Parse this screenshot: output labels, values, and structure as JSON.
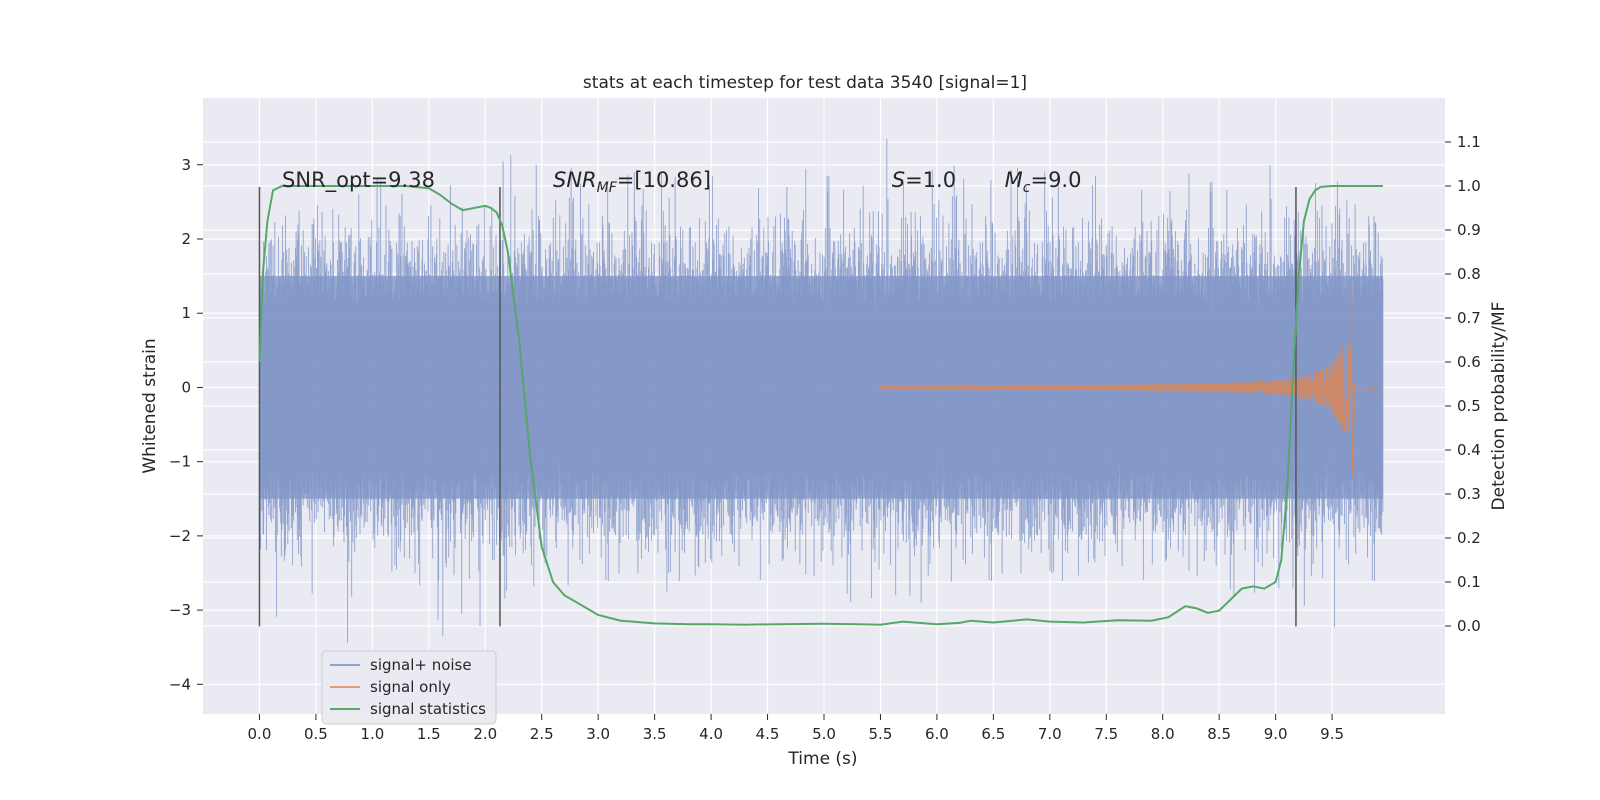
{
  "chart_data": {
    "type": "line",
    "title": "stats at each timestep for test data 3540 [signal=1]",
    "xlabel": "Time (s)",
    "ylabel": "Whitened strain",
    "ylabel_right": "Detection probability/MF",
    "xlim": [
      -0.5,
      10.5
    ],
    "ylim": [
      -4.4,
      3.9
    ],
    "ylim_right": [
      -0.2,
      1.2
    ],
    "x_ticks": [
      "0.0",
      "0.5",
      "1.0",
      "1.5",
      "2.0",
      "2.5",
      "3.0",
      "3.5",
      "4.0",
      "4.5",
      "5.0",
      "5.5",
      "6.0",
      "6.5",
      "7.0",
      "7.5",
      "8.0",
      "8.5",
      "9.0",
      "9.5"
    ],
    "y_ticks": [
      "3",
      "2",
      "1",
      "0",
      "−1",
      "−2",
      "−3",
      "−4"
    ],
    "y_right_ticks": [
      "1.1",
      "1.0",
      "0.9",
      "0.8",
      "0.7",
      "0.6",
      "0.5",
      "0.4",
      "0.3",
      "0.2",
      "0.1",
      "0.0"
    ],
    "grid": true,
    "legend_position": "lower-left",
    "colors": {
      "plot_bg": "#eaeaf2",
      "grid": "#ffffff",
      "noise": "#8197c8",
      "signal": "#dd8452",
      "stats": "#55a868",
      "vlines": "#555555"
    },
    "series": [
      {
        "name": "signal+ noise",
        "envelope": {
          "x": [
            0.0,
            1.0,
            2.0,
            2.2,
            3.0,
            4.0,
            5.0,
            5.5,
            6.0,
            7.0,
            8.0,
            9.0,
            9.2,
            9.5,
            9.95
          ],
          "upper": [
            2.5,
            2.8,
            2.9,
            3.35,
            2.9,
            2.9,
            3.0,
            3.5,
            3.1,
            2.9,
            2.9,
            3.0,
            3.0,
            2.9,
            2.4
          ],
          "lower": [
            -3.1,
            -3.6,
            -3.2,
            -2.8,
            -3.0,
            -3.3,
            -2.9,
            -2.9,
            -2.9,
            -2.8,
            -2.9,
            -2.8,
            -2.8,
            -3.6,
            -2.6
          ]
        }
      },
      {
        "name": "signal only",
        "chirp": {
          "t_start": 5.5,
          "t_merge": 9.67,
          "amp_start": 0.02,
          "amp_peak": 1.4,
          "amp_peak_neg": -1.2
        }
      },
      {
        "name": "signal statistics",
        "x": [
          0.0,
          0.03,
          0.07,
          0.12,
          0.2,
          0.3,
          0.5,
          0.8,
          1.0,
          1.3,
          1.5,
          1.6,
          1.7,
          1.8,
          1.9,
          2.0,
          2.05,
          2.1,
          2.15,
          2.2,
          2.3,
          2.4,
          2.5,
          2.6,
          2.7,
          2.8,
          3.0,
          3.2,
          3.5,
          3.8,
          4.0,
          4.3,
          4.6,
          5.0,
          5.3,
          5.5,
          5.7,
          6.0,
          6.2,
          6.3,
          6.5,
          6.8,
          7.0,
          7.3,
          7.6,
          7.9,
          8.05,
          8.2,
          8.3,
          8.4,
          8.5,
          8.6,
          8.7,
          8.8,
          8.9,
          9.0,
          9.05,
          9.1,
          9.15,
          9.2,
          9.25,
          9.3,
          9.35,
          9.4,
          9.5,
          9.6,
          9.8,
          9.95
        ],
        "values": [
          0.6,
          0.8,
          0.92,
          0.99,
          1.0,
          1.0,
          1.0,
          1.0,
          1.0,
          1.0,
          0.995,
          0.98,
          0.96,
          0.945,
          0.95,
          0.955,
          0.95,
          0.94,
          0.91,
          0.85,
          0.65,
          0.38,
          0.18,
          0.1,
          0.07,
          0.055,
          0.025,
          0.012,
          0.006,
          0.004,
          0.004,
          0.003,
          0.004,
          0.005,
          0.004,
          0.003,
          0.01,
          0.004,
          0.007,
          0.012,
          0.008,
          0.015,
          0.01,
          0.008,
          0.013,
          0.012,
          0.02,
          0.045,
          0.04,
          0.03,
          0.035,
          0.06,
          0.085,
          0.09,
          0.085,
          0.1,
          0.15,
          0.3,
          0.55,
          0.78,
          0.92,
          0.97,
          0.99,
          0.998,
          1.0,
          1.0,
          1.0,
          1.0
        ]
      }
    ],
    "vertical_lines": [
      0.0,
      2.13,
      9.18
    ],
    "vertical_line_span": [
      -3.22,
      2.7
    ],
    "annotations": [
      {
        "text": "SNR_opt=9.38",
        "x": 0.2,
        "y": 2.7
      },
      {
        "main": "SNR",
        "sub": "MF",
        "tail": "=[10.86]",
        "x": 2.6,
        "y": 2.7
      },
      {
        "main": "S",
        "sub": "",
        "tail": "=1.0",
        "x": 5.6,
        "y": 2.7
      },
      {
        "main": "M",
        "sub": "c",
        "tail": "=9.0",
        "x": 6.6,
        "y": 2.7
      }
    ]
  }
}
